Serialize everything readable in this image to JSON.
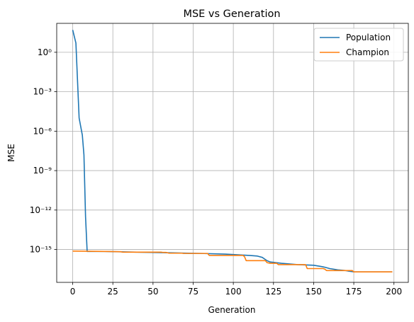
{
  "chart_data": {
    "type": "line",
    "title": "MSE vs Generation",
    "xlabel": "Generation",
    "ylabel": "MSE",
    "xlim": [
      -9.95,
      208.95
    ],
    "ylim_exp": [
      -17.5,
      2.2
    ],
    "yscale": "log",
    "grid": true,
    "legend_position": "top-right",
    "x_ticks": [
      0,
      25,
      50,
      75,
      100,
      125,
      150,
      175,
      200
    ],
    "y_ticks": [
      {
        "exp": 0,
        "label": "10⁰"
      },
      {
        "exp": -3,
        "label": "10⁻³"
      },
      {
        "exp": -6,
        "label": "10⁻⁶"
      },
      {
        "exp": -9,
        "label": "10⁻⁹"
      },
      {
        "exp": -12,
        "label": "10⁻¹²"
      },
      {
        "exp": -15,
        "label": "10⁻¹⁵"
      }
    ],
    "series": [
      {
        "name": "Population",
        "color": "#1f77b4",
        "x": [
          0,
          2,
          4,
          6,
          7,
          8,
          9,
          20,
          40,
          60,
          80,
          95,
          110,
          115,
          118,
          121,
          123,
          130,
          140,
          150,
          155,
          157,
          160,
          165,
          170,
          172,
          175,
          190,
          199
        ],
        "log10_y": [
          1.7,
          0.7,
          -5.0,
          -6.3,
          -7.8,
          -12.5,
          -15.15,
          -15.15,
          -15.2,
          -15.25,
          -15.3,
          -15.35,
          -15.45,
          -15.5,
          -15.6,
          -15.85,
          -15.95,
          -16.05,
          -16.15,
          -16.2,
          -16.3,
          -16.35,
          -16.45,
          -16.55,
          -16.6,
          -16.65,
          -16.7,
          -16.7,
          -16.7
        ]
      },
      {
        "name": "Champion",
        "color": "#ff7f0e",
        "x": [
          0,
          20,
          30,
          31,
          55,
          56,
          58,
          60,
          68,
          69,
          84,
          85,
          106,
          107,
          108,
          120,
          121,
          123,
          127,
          128,
          145,
          146,
          156,
          157,
          158,
          174,
          175,
          199
        ],
        "log10_y": [
          -15.12,
          -15.15,
          -15.17,
          -15.2,
          -15.2,
          -15.22,
          -15.22,
          -15.28,
          -15.28,
          -15.3,
          -15.3,
          -15.45,
          -15.45,
          -15.55,
          -15.85,
          -15.85,
          -16.0,
          -16.05,
          -16.05,
          -16.15,
          -16.15,
          -16.45,
          -16.45,
          -16.5,
          -16.6,
          -16.6,
          -16.7,
          -16.7
        ]
      }
    ]
  }
}
